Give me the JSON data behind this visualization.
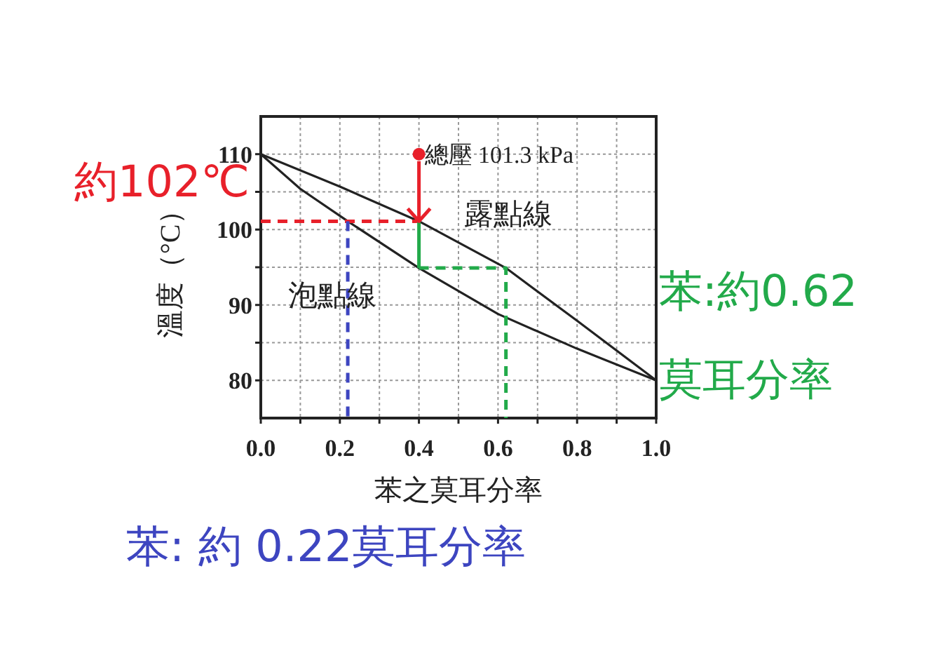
{
  "chart_data": {
    "type": "line",
    "xlabel": "苯之莫耳分率",
    "ylabel": "溫度（°C）",
    "xlim": [
      0,
      1
    ],
    "ylim": [
      75,
      115
    ],
    "xticks": [
      {
        "value": 0,
        "label": "0.0"
      },
      {
        "value": 0.1,
        "label": null
      },
      0.2,
      {
        "value": 0.3,
        "label": null
      },
      0.4,
      {
        "value": 0.5,
        "label": null
      },
      0.6,
      {
        "value": 0.7,
        "label": null
      },
      0.8,
      {
        "value": 0.9,
        "label": null
      },
      {
        "value": 1,
        "label": "1.0"
      }
    ],
    "yticks": [
      80,
      {
        "value": 85,
        "label": null
      },
      90,
      {
        "value": 95,
        "label": null
      },
      100,
      {
        "value": 105,
        "label": null
      },
      110
    ],
    "grid": true,
    "marker": "none",
    "line_style": "solid",
    "series": [
      {
        "color": "#222222",
        "x": [
          0,
          0.1,
          0.22,
          0.4,
          0.6,
          0.8,
          1
        ],
        "values": [
          110,
          105.4,
          101.1,
          94.9,
          88.8,
          84.2,
          80
        ]
      },
      {
        "color": "#222222",
        "x": [
          0,
          0.2,
          0.4,
          0.62,
          0.8,
          1
        ],
        "values": [
          110,
          105.7,
          101.1,
          94.9,
          87.9,
          80
        ]
      },
      {
        "color": "#e8202a",
        "type": "scatter",
        "marker": "circle",
        "x": [
          0.4
        ],
        "values": [
          110
        ]
      },
      {
        "color": "#e8202a",
        "line_style": "dashed",
        "x": [
          0,
          0.4
        ],
        "values": [
          101.1,
          101.1
        ]
      },
      {
        "color": "#3d45c0",
        "line_style": "dashed",
        "x": [
          0.22,
          0.22
        ],
        "values": [
          101.1,
          75
        ]
      },
      {
        "color": "#22aa4a",
        "x": [
          0.4,
          0.4
        ],
        "values": [
          101.1,
          94.9
        ]
      },
      {
        "color": "#22aa4a",
        "line_style": "dashed",
        "x": [
          0.4,
          0.62,
          0.62
        ],
        "values": [
          94.9,
          94.9,
          75
        ]
      }
    ],
    "annotations": [
      {
        "text": "總壓 101.3 kPa",
        "x": 0.4,
        "y": 110
      },
      "約102℃",
      "苯:約0.62",
      "莫耳分率",
      "苯: 約 0.22莫耳分率",
      "泡點線",
      {
        "text": "露點線",
        "x": 0.4,
        "y": 101.1
      }
    ]
  }
}
